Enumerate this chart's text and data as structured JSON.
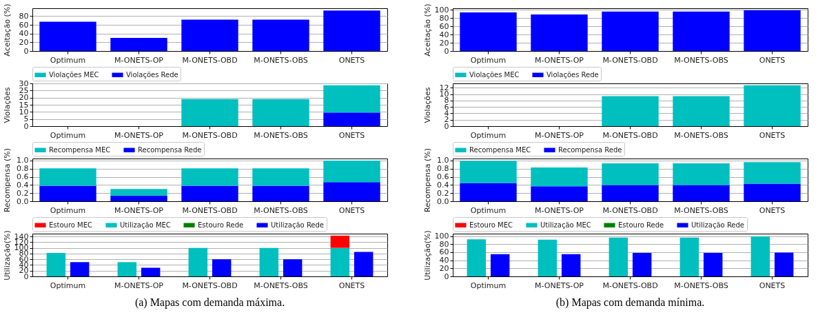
{
  "chart_data": [
    {
      "type": "bar",
      "ylabel": "Aceitação (%)",
      "categories": [
        "Optimum",
        "M-ONETS-OP",
        "M-ONETS-OBD",
        "M-ONETS-OBS",
        "ONETS"
      ],
      "values": [
        67,
        30,
        72,
        72,
        93
      ],
      "color": "#0000ff",
      "ylim": [
        0,
        98
      ],
      "yticks": [
        0,
        20,
        40,
        60,
        80
      ],
      "grid": "y"
    },
    {
      "type": "bar",
      "ylabel": "Violações",
      "categories": [
        "Optimum",
        "M-ONETS-OP",
        "M-ONETS-OBD",
        "M-ONETS-OBS",
        "ONETS"
      ],
      "stacked": true,
      "legend": "top",
      "ylim": [
        0,
        30
      ],
      "yticks": [
        0,
        5,
        10,
        15,
        20,
        25,
        30
      ],
      "grid": "y",
      "series": [
        {
          "name": "Violações Rede",
          "color": "#0000ff",
          "values": [
            0,
            0,
            0,
            0,
            9.5
          ]
        },
        {
          "name": "Violações MEC",
          "color": "#00bfbf",
          "values": [
            0,
            0,
            19,
            19,
            19.2
          ]
        }
      ]
    },
    {
      "type": "bar",
      "ylabel": "Recompensa (%)",
      "categories": [
        "Optimum",
        "M-ONETS-OP",
        "M-ONETS-OBD",
        "M-ONETS-OBS",
        "ONETS"
      ],
      "stacked": true,
      "legend": "top",
      "ylim": [
        0,
        1.05
      ],
      "yticks": [
        {
          "value": 0,
          "label": "0.0"
        },
        {
          "value": 0.2,
          "label": "0.2"
        },
        {
          "value": 0.4,
          "label": "0.4"
        },
        {
          "value": 0.6,
          "label": "0.6"
        },
        {
          "value": 0.8,
          "label": "0.8"
        },
        {
          "value": 1,
          "label": "1.0"
        }
      ],
      "grid": "y",
      "series": [
        {
          "name": "Recompensa Rede",
          "color": "#0000ff",
          "values": [
            0.38,
            0.14,
            0.38,
            0.38,
            0.47
          ]
        },
        {
          "name": "Recompensa MEC",
          "color": "#00bfbf",
          "values": [
            0.43,
            0.16,
            0.43,
            0.43,
            0.53
          ]
        }
      ]
    },
    {
      "type": "bar",
      "ylabel": "Utilização(%)",
      "categories": [
        "Optimum",
        "M-ONETS-OP",
        "M-ONETS-OBD",
        "M-ONETS-OBS",
        "ONETS"
      ],
      "legend": "top",
      "ylim": [
        0,
        150
      ],
      "yticks": [
        0,
        20,
        40,
        60,
        80,
        100,
        120,
        140
      ],
      "grid": "y",
      "annotations": [
        "(a) Mapas com demanda máxima."
      ],
      "series": [
        {
          "name": "Utilização MEC",
          "color": "#00bfbf",
          "values": [
            82,
            50,
            100,
            100,
            100
          ]
        },
        {
          "name": "Estouro MEC",
          "color": "#ff0000",
          "base": [
            null,
            null,
            null,
            null,
            100
          ],
          "values": [
            0,
            0,
            0,
            0,
            43
          ]
        },
        {
          "name": "Utilização Rede",
          "color": "#0000ff",
          "values": [
            50,
            30,
            60,
            60,
            86
          ]
        },
        {
          "name": "Estouro Rede",
          "color": "#008000",
          "base": [
            null,
            null,
            null,
            null,
            null
          ],
          "values": [
            0,
            0,
            0,
            0,
            0
          ]
        }
      ]
    },
    {
      "type": "bar",
      "ylabel": "Aceitação (%)",
      "categories": [
        "Optimum",
        "M-ONETS-OP",
        "M-ONETS-OBD",
        "M-ONETS-OBS",
        "ONETS"
      ],
      "values": [
        94,
        89,
        96,
        96,
        99
      ],
      "color": "#0000ff",
      "ylim": [
        0,
        104
      ],
      "yticks": [
        0,
        20,
        40,
        60,
        80,
        100
      ],
      "grid": "y"
    },
    {
      "type": "bar",
      "ylabel": "Violações",
      "categories": [
        "Optimum",
        "M-ONETS-OP",
        "M-ONETS-OBD",
        "M-ONETS-OBS",
        "ONETS"
      ],
      "stacked": true,
      "legend": "top",
      "ylim": [
        0,
        13.4
      ],
      "yticks": [
        0,
        2,
        4,
        6,
        8,
        10,
        12
      ],
      "grid": "y",
      "series": [
        {
          "name": "Violações Rede",
          "color": "#0000ff",
          "values": [
            0,
            0,
            0,
            0,
            0
          ]
        },
        {
          "name": "Violações MEC",
          "color": "#00bfbf",
          "values": [
            0,
            0,
            9.4,
            9.4,
            12.8
          ]
        }
      ]
    },
    {
      "type": "bar",
      "ylabel": "Recompensa (%)",
      "categories": [
        "Optimum",
        "M-ONETS-OP",
        "M-ONETS-OBD",
        "M-ONETS-OBS",
        "ONETS"
      ],
      "stacked": true,
      "legend": "top",
      "ylim": [
        0,
        1.05
      ],
      "yticks": [
        {
          "value": 0,
          "label": "0.0"
        },
        {
          "value": 0.2,
          "label": "0.2"
        },
        {
          "value": 0.4,
          "label": "0.4"
        },
        {
          "value": 0.6,
          "label": "0.6"
        },
        {
          "value": 0.8,
          "label": "0.8"
        },
        {
          "value": 1,
          "label": "1.0"
        }
      ],
      "grid": "y",
      "series": [
        {
          "name": "Recompensa Rede",
          "color": "#0000ff",
          "values": [
            0.45,
            0.37,
            0.4,
            0.4,
            0.43
          ]
        },
        {
          "name": "Recompensa MEC",
          "color": "#00bfbf",
          "values": [
            0.54,
            0.46,
            0.53,
            0.53,
            0.53
          ]
        }
      ]
    },
    {
      "type": "bar",
      "ylabel": "Utilização(%)",
      "categories": [
        "Optimum",
        "M-ONETS-OP",
        "M-ONETS-OBD",
        "M-ONETS-OBS",
        "ONETS"
      ],
      "legend": "top",
      "ylim": [
        0,
        106
      ],
      "yticks": [
        0,
        20,
        40,
        60,
        80,
        100
      ],
      "grid": "y",
      "annotations": [
        "(b) Mapas com demanda mínima."
      ],
      "series": [
        {
          "name": "Utilização MEC",
          "color": "#00bfbf",
          "values": [
            92,
            91,
            96,
            96,
            99
          ]
        },
        {
          "name": "Estouro MEC",
          "color": "#ff0000",
          "base": [
            null,
            null,
            null,
            null,
            null
          ],
          "values": [
            0,
            0,
            0,
            0,
            0
          ]
        },
        {
          "name": "Utilização Rede",
          "color": "#0000ff",
          "values": [
            55,
            55,
            58,
            58,
            59
          ]
        },
        {
          "name": "Estouro Rede",
          "color": "#008000",
          "base": [
            null,
            null,
            null,
            null,
            null
          ],
          "values": [
            0,
            0,
            0,
            0,
            0
          ]
        }
      ]
    }
  ]
}
